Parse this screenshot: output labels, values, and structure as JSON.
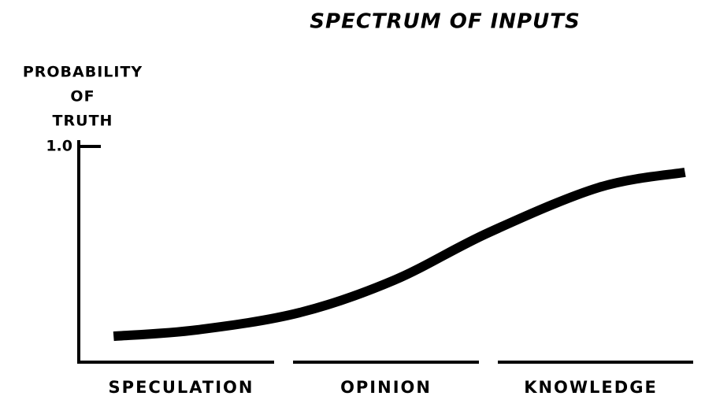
{
  "chart_data": {
    "type": "line",
    "title": "SPECTRUM OF INPUTS",
    "y_label": [
      "PROBABILITY",
      "OF",
      "TRUTH"
    ],
    "categories": [
      "SPECULATION",
      "OPINION",
      "KNOWLEDGE"
    ],
    "xlim": [
      0,
      3
    ],
    "ylim": [
      0,
      1
    ],
    "yticks": [
      {
        "value": 1,
        "label": "1.0"
      }
    ],
    "series": [
      {
        "color": "#000000",
        "x": [
          0.17,
          0.58,
          1.08,
          1.54,
          2.0,
          2.54,
          2.96
        ],
        "values": [
          0.12,
          0.15,
          0.23,
          0.38,
          0.6,
          0.81,
          0.88
        ]
      }
    ]
  }
}
